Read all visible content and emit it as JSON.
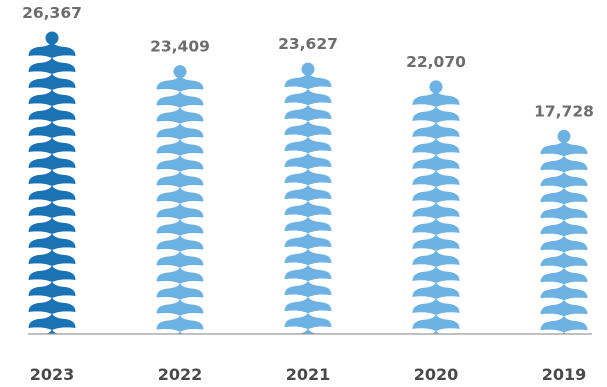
{
  "chart_data": {
    "type": "bar",
    "title": "",
    "xlabel": "",
    "ylabel": "",
    "categories": [
      "2023",
      "2022",
      "2021",
      "2020",
      "2019"
    ],
    "values": [
      26367,
      23409,
      23627,
      22070,
      17728
    ],
    "value_labels": [
      "26,367",
      "23,409",
      "23,627",
      "22,070",
      "17,728"
    ],
    "ylim": [
      0,
      30000
    ],
    "grid": false,
    "legend": "none",
    "mark_style": "stacked-wave-icons",
    "colors": {
      "highlight": "#1a73b5",
      "default": "#6cb2e2",
      "baseline": "#9a9a9a",
      "value_text": "#6d6d6d",
      "category_text": "#4a4a4a"
    },
    "highlight_index": 0
  }
}
